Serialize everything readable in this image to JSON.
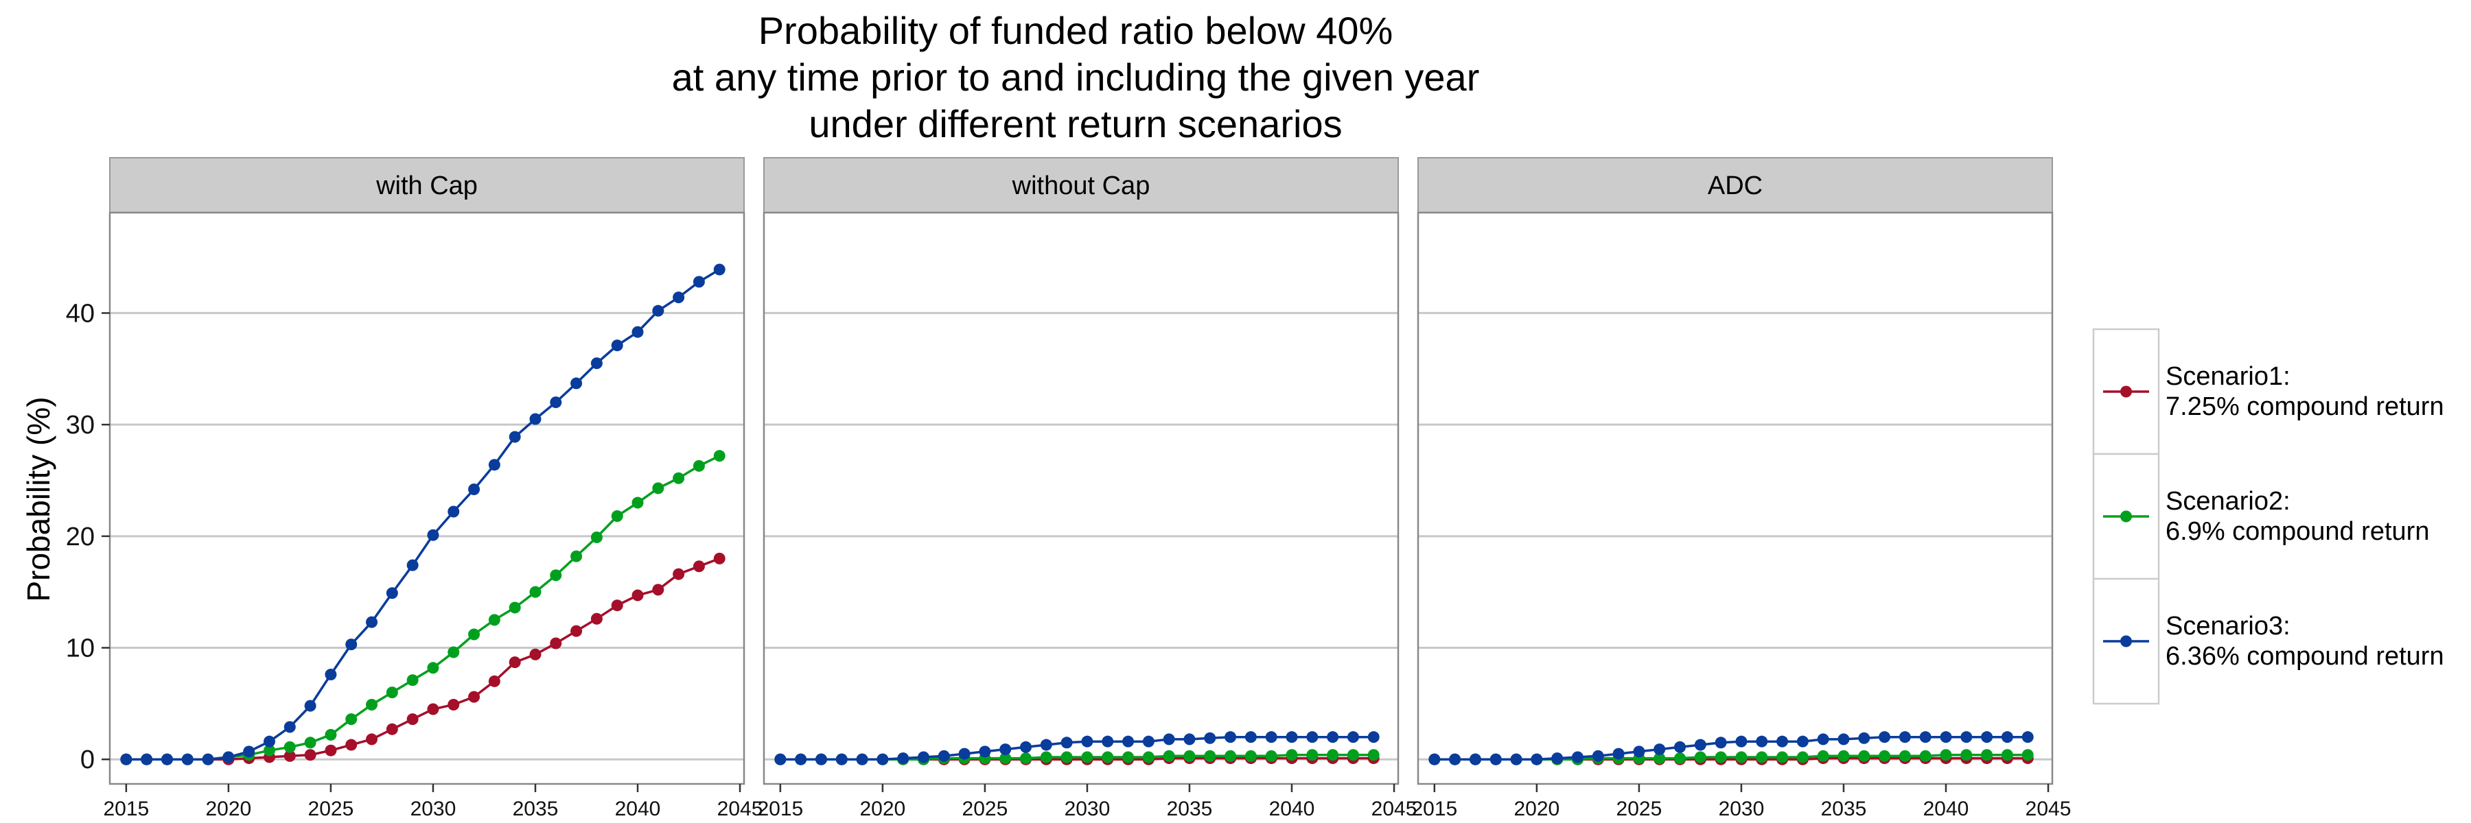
{
  "chart_data": {
    "type": "line",
    "title_lines": [
      "Probability of funded ratio below 40%",
      "at any time prior to and including the given year",
      "under different return scenarios"
    ],
    "ylabel": "Probability (%)",
    "xlabel": "",
    "xlim": [
      2014.2,
      2045.2
    ],
    "ylim": [
      -2.2,
      49
    ],
    "x_ticks": [
      2015,
      2020,
      2025,
      2030,
      2035,
      2040,
      2045
    ],
    "y_ticks": [
      0,
      10,
      20,
      30,
      40
    ],
    "grid": "horizontal major",
    "legend_position": "right",
    "x": [
      2015,
      2016,
      2017,
      2018,
      2019,
      2020,
      2021,
      2022,
      2023,
      2024,
      2025,
      2026,
      2027,
      2028,
      2029,
      2030,
      2031,
      2032,
      2033,
      2034,
      2035,
      2036,
      2037,
      2038,
      2039,
      2040,
      2041,
      2042,
      2043,
      2044
    ],
    "series_styles": [
      {
        "color": "#A50F2A",
        "legend_line1": "Scenario1:",
        "legend_line2": "7.25% compound return"
      },
      {
        "color": "#00A01E",
        "legend_line1": "Scenario2:",
        "legend_line2": "6.9% compound return"
      },
      {
        "color": "#0A3C9C",
        "legend_line1": "Scenario3:",
        "legend_line2": "6.36% compound return"
      }
    ],
    "panels": [
      {
        "label": "with Cap",
        "series": [
          {
            "name": "Scenario1: 7.25% compound return",
            "values": [
              0,
              0,
              0,
              0,
              0,
              0,
              0.1,
              0.2,
              0.3,
              0.4,
              0.8,
              1.3,
              1.8,
              2.7,
              3.6,
              4.5,
              4.9,
              5.6,
              7.0,
              8.7,
              9.4,
              10.4,
              11.5,
              12.6,
              13.8,
              14.7,
              15.2,
              16.6,
              17.3,
              18.0
            ]
          },
          {
            "name": "Scenario2: 6.9% compound return",
            "values": [
              0,
              0,
              0,
              0,
              0,
              0.2,
              0.4,
              0.8,
              1.1,
              1.5,
              2.2,
              3.6,
              4.9,
              6.0,
              7.1,
              8.2,
              9.6,
              11.2,
              12.5,
              13.6,
              15.0,
              16.5,
              18.2,
              19.9,
              21.8,
              23.0,
              24.3,
              25.2,
              26.3,
              27.2
            ]
          },
          {
            "name": "Scenario3: 6.36% compound return",
            "values": [
              0,
              0,
              0,
              0,
              0,
              0.2,
              0.7,
              1.6,
              2.9,
              4.8,
              7.6,
              10.3,
              12.3,
              14.9,
              17.4,
              20.1,
              22.2,
              24.2,
              26.4,
              28.9,
              30.5,
              32.0,
              33.7,
              35.5,
              37.1,
              38.3,
              40.2,
              41.4,
              42.8,
              43.9
            ]
          }
        ]
      },
      {
        "label": "without Cap",
        "series": [
          {
            "name": "Scenario1: 7.25% compound return",
            "values": [
              0,
              0,
              0,
              0,
              0,
              0,
              0,
              0,
              0,
              0,
              0,
              0,
              0,
              0,
              0,
              0,
              0,
              0,
              0,
              0.1,
              0.1,
              0.1,
              0.1,
              0.1,
              0.1,
              0.1,
              0.1,
              0.1,
              0.1,
              0.1
            ]
          },
          {
            "name": "Scenario2: 6.9% compound return",
            "values": [
              0,
              0,
              0,
              0,
              0,
              0,
              0,
              0,
              0.1,
              0.1,
              0.1,
              0.1,
              0.1,
              0.2,
              0.2,
              0.2,
              0.2,
              0.2,
              0.2,
              0.3,
              0.3,
              0.3,
              0.3,
              0.3,
              0.3,
              0.4,
              0.4,
              0.4,
              0.4,
              0.4
            ]
          },
          {
            "name": "Scenario3: 6.36% compound return",
            "values": [
              0,
              0,
              0,
              0,
              0,
              0,
              0.1,
              0.2,
              0.3,
              0.5,
              0.7,
              0.9,
              1.1,
              1.3,
              1.5,
              1.6,
              1.6,
              1.6,
              1.6,
              1.8,
              1.8,
              1.9,
              2.0,
              2.0,
              2.0,
              2.0,
              2.0,
              2.0,
              2.0,
              2.0
            ]
          }
        ]
      },
      {
        "label": "ADC",
        "series": [
          {
            "name": "Scenario1: 7.25% compound return",
            "values": [
              0,
              0,
              0,
              0,
              0,
              0,
              0,
              0,
              0,
              0,
              0,
              0,
              0,
              0,
              0,
              0,
              0,
              0,
              0,
              0.1,
              0.1,
              0.1,
              0.1,
              0.1,
              0.1,
              0.1,
              0.1,
              0.1,
              0.1,
              0.1
            ]
          },
          {
            "name": "Scenario2: 6.9% compound return",
            "values": [
              0,
              0,
              0,
              0,
              0,
              0,
              0,
              0,
              0.1,
              0.1,
              0.1,
              0.1,
              0.1,
              0.2,
              0.2,
              0.2,
              0.2,
              0.2,
              0.2,
              0.3,
              0.3,
              0.3,
              0.3,
              0.3,
              0.3,
              0.4,
              0.4,
              0.4,
              0.4,
              0.4
            ]
          },
          {
            "name": "Scenario3: 6.36% compound return",
            "values": [
              0,
              0,
              0,
              0,
              0,
              0,
              0.1,
              0.2,
              0.3,
              0.5,
              0.7,
              0.9,
              1.1,
              1.3,
              1.5,
              1.6,
              1.6,
              1.6,
              1.6,
              1.8,
              1.8,
              1.9,
              2.0,
              2.0,
              2.0,
              2.0,
              2.0,
              2.0,
              2.0,
              2.0
            ]
          }
        ]
      }
    ]
  }
}
